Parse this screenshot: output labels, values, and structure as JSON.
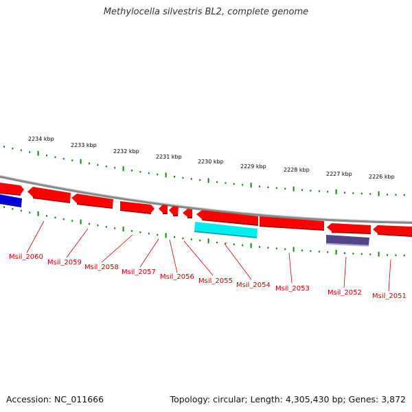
{
  "title": "Methylocella silvestris BL2, complete genome",
  "accession": "Accession: NC_011666",
  "summary": "Topology: circular; Length: 4,305,430 bp; Genes: 3,872",
  "scale_labels": [
    "2234 kbp",
    "2233 kbp",
    "2232 kbp",
    "2231 kbp",
    "2230 kbp",
    "2229 kbp",
    "2228 kbp",
    "2227 kbp",
    "2226 kbp"
  ],
  "genes": [
    {
      "label": "Msil_2060"
    },
    {
      "label": "Msil_2059"
    },
    {
      "label": "Msil_2058"
    },
    {
      "label": "Msil_2057"
    },
    {
      "label": "Msil_2056"
    },
    {
      "label": "Msil_2055"
    },
    {
      "label": "Msil_2054"
    },
    {
      "label": "Msil_2053"
    },
    {
      "label": "Msil_2052"
    },
    {
      "label": "Msil_2051"
    }
  ],
  "colors": {
    "gene": "#ff0000",
    "backbone": "#888888",
    "scale": "#118811",
    "label": "#cc0000",
    "feature_blue": "#0000dd",
    "feature_cyan": "#00eeee",
    "feature_purple": "#554488"
  }
}
